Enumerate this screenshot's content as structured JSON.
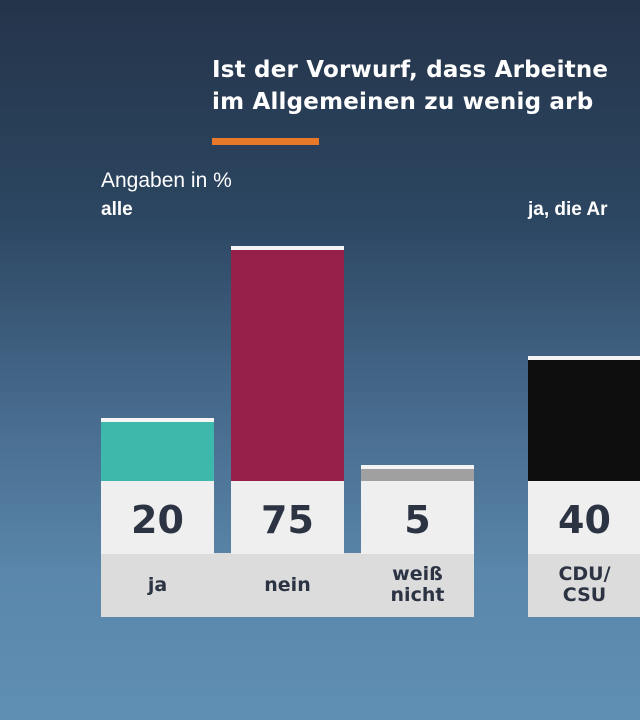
{
  "chart_data": {
    "type": "bar",
    "title_lines": [
      "Ist der Vorwurf, dass Arbeitne",
      "im Allgemeinen zu wenig arb"
    ],
    "unit_label": "Angaben in %",
    "groups": [
      {
        "label": "alle",
        "categories": [
          "ja",
          "nein",
          "weiß\nnicht"
        ],
        "values": [
          20,
          75,
          5
        ],
        "colors": [
          "#3db8aa",
          "#97204b",
          "#a0a0a0"
        ]
      },
      {
        "label": "ja, die Ar",
        "categories": [
          "CDU/\nCSU"
        ],
        "values": [
          40
        ],
        "colors": [
          "#0e0e0e"
        ]
      }
    ],
    "ylim": [
      0,
      100
    ],
    "grid": false
  },
  "colors": {
    "accent": "#e8782a"
  }
}
